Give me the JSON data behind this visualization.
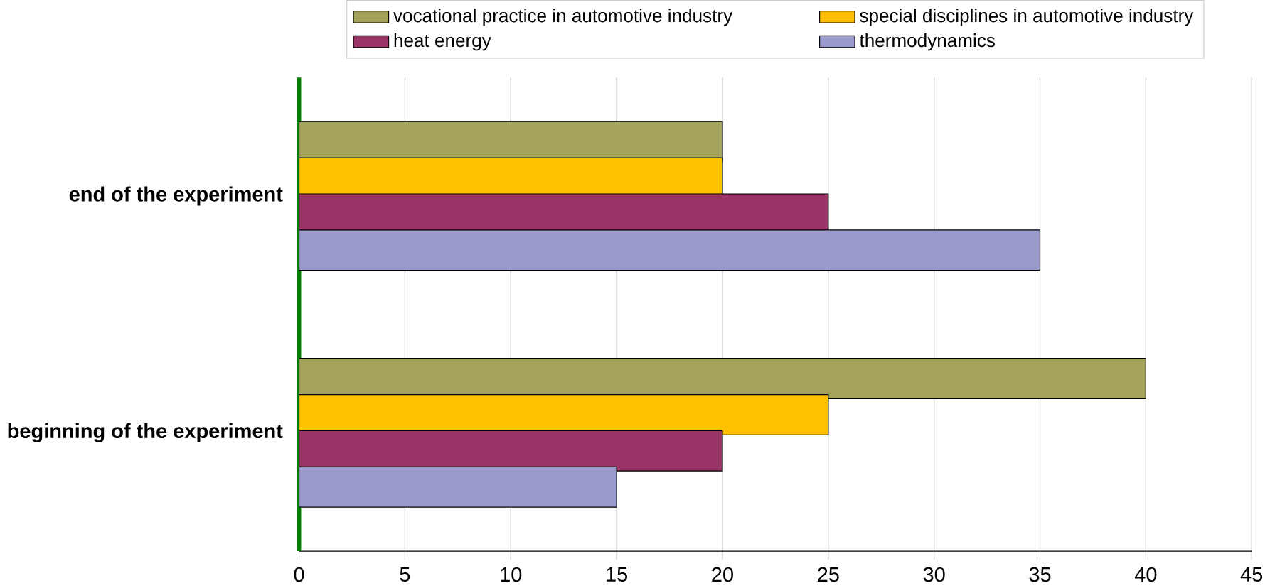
{
  "chart_data": {
    "type": "bar",
    "orientation": "horizontal",
    "categories": [
      "end of the experiment",
      "beginning of the experiment"
    ],
    "series": [
      {
        "name": "vocational practice in automotive industry",
        "color": "#a3a35c",
        "values": [
          20,
          40
        ]
      },
      {
        "name": "special disciplines in automotive industry",
        "color": "#ffc000",
        "values": [
          20,
          25
        ]
      },
      {
        "name": "heat energy",
        "color": "#993366",
        "values": [
          25,
          20
        ]
      },
      {
        "name": "thermodynamics",
        "color": "#9999cc",
        "values": [
          35,
          15
        ]
      }
    ],
    "xlim": [
      0,
      45
    ],
    "xticks": [
      0,
      5,
      10,
      15,
      20,
      25,
      30,
      35,
      40,
      45
    ],
    "grid": "x",
    "legend": "top"
  }
}
